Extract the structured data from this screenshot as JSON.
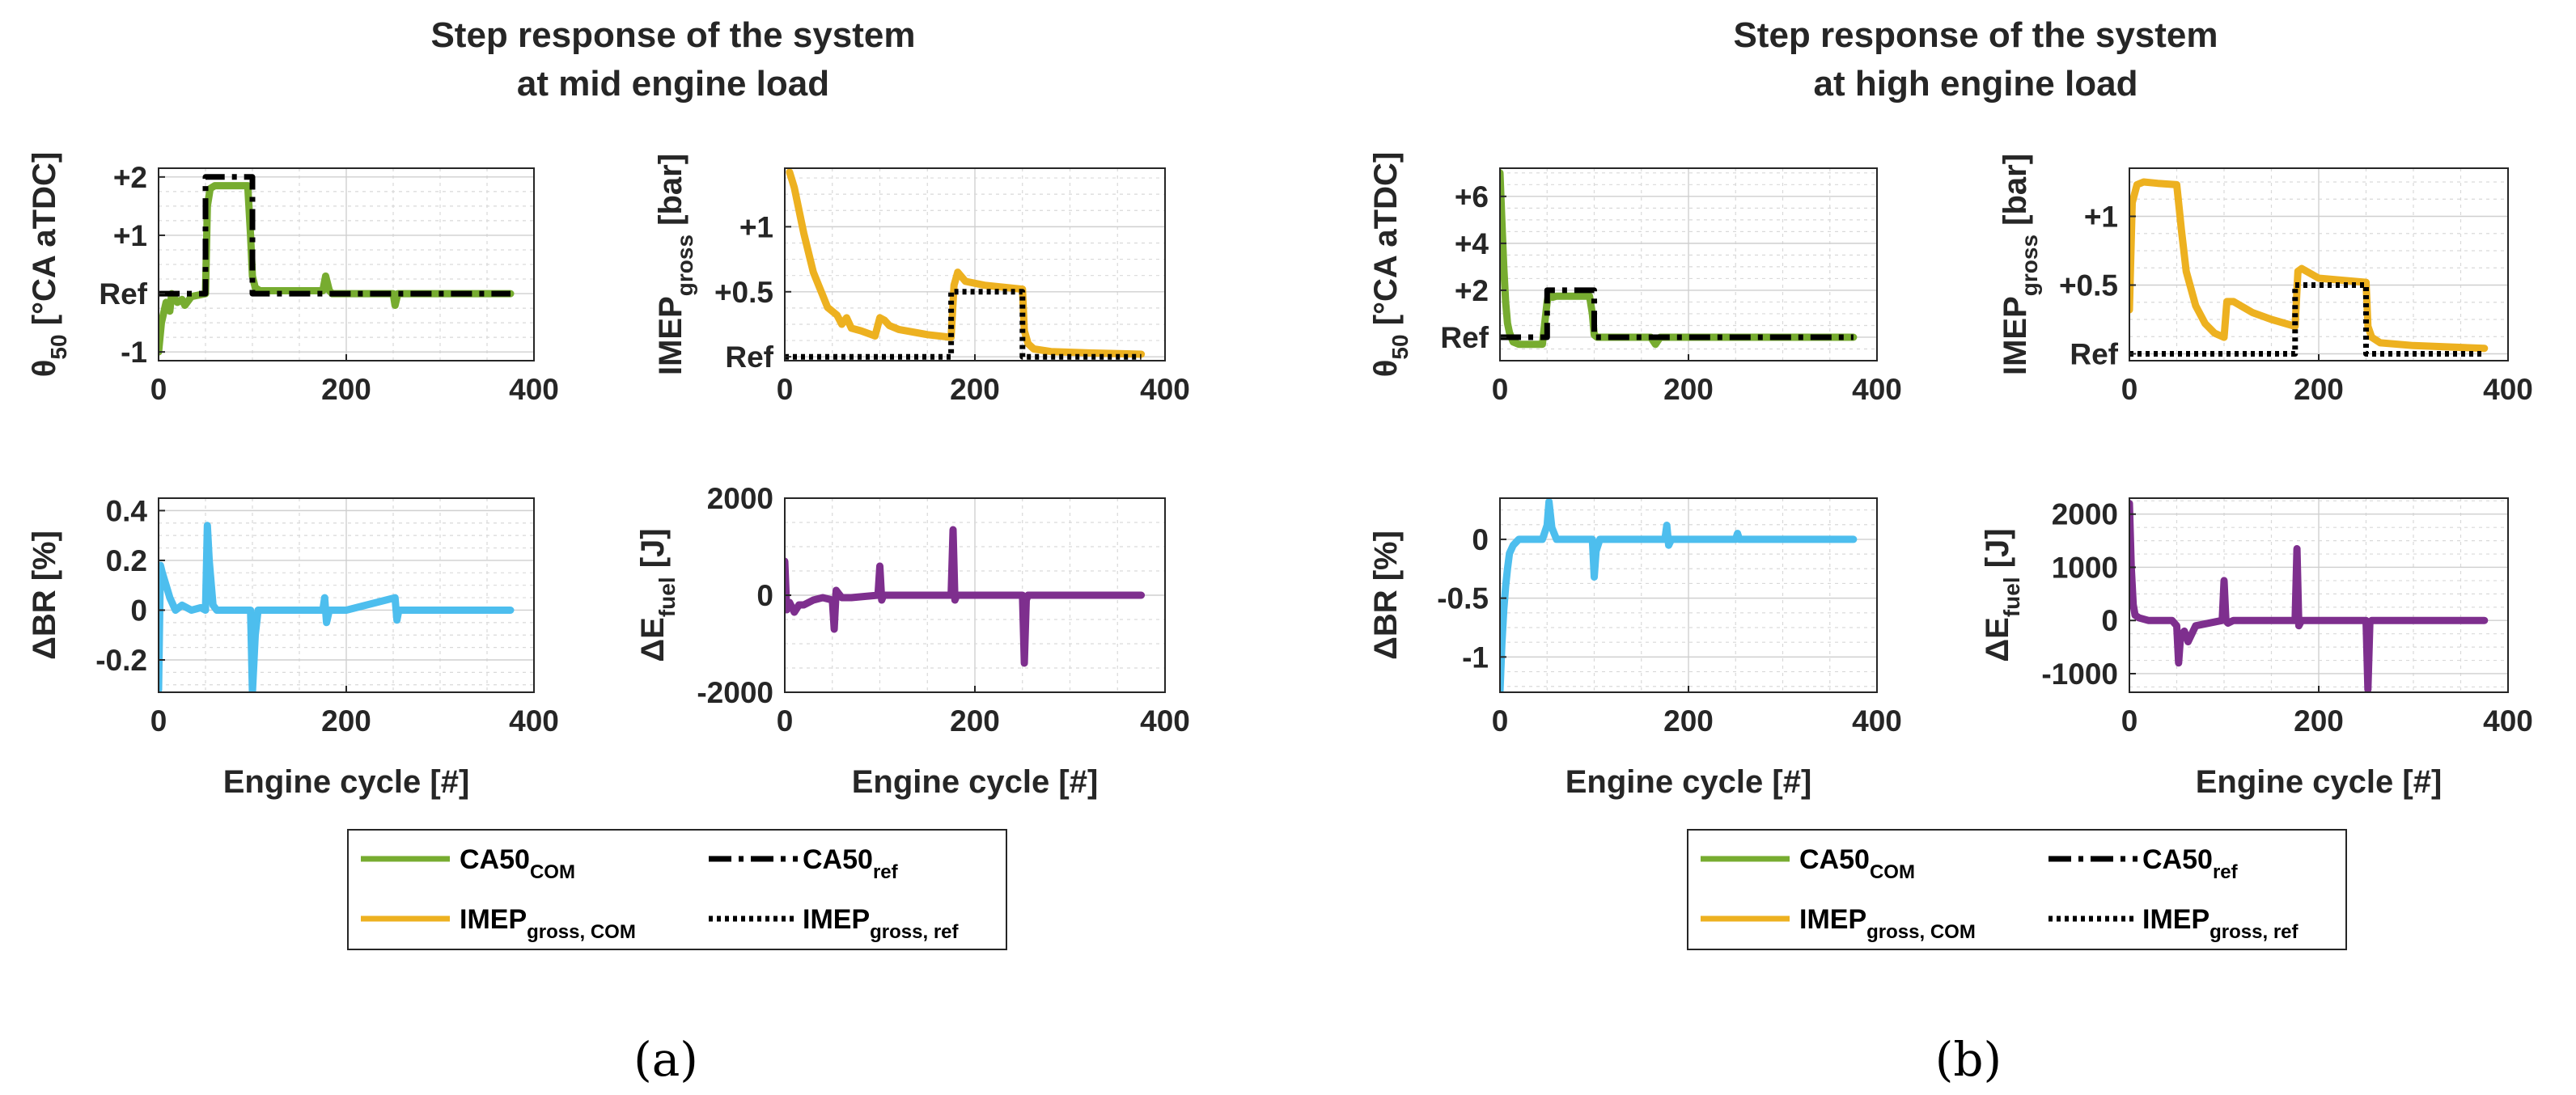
{
  "figure": {
    "panel_a_label": "(a)",
    "panel_b_label": "(b)"
  },
  "colors": {
    "ca50_com": "#77AC30",
    "ca50_ref": "#000000",
    "imep_com": "#EDB120",
    "imep_ref": "#000000",
    "delta_br": "#4DBEEE",
    "delta_e": "#7E2F8E"
  },
  "legend": {
    "ca50_com_main": "CA50",
    "ca50_com_sub": "COM",
    "ca50_ref_main": "CA50",
    "ca50_ref_sub": "ref",
    "imep_com_main": "IMEP",
    "imep_com_sub": "gross, COM",
    "imep_ref_main": "IMEP",
    "imep_ref_sub": "gross, ref"
  },
  "chart_data": [
    {
      "group": "a",
      "title_line1": "Step response of the system",
      "title_line2": "at mid engine load",
      "subplots": [
        {
          "id": "a_theta",
          "type": "line",
          "ylabel_main": "θ",
          "ylabel_sub": "50",
          "ylabel_rest": " [°CA aTDC]",
          "xlabel": "",
          "xlim": [
            0,
            400
          ],
          "ylim": [
            -1.15,
            2.15
          ],
          "xticks": [
            0,
            200,
            400
          ],
          "xtick_labels": [
            "0",
            "200",
            "400"
          ],
          "yticks": [
            -1,
            0,
            1,
            2
          ],
          "ytick_labels": [
            "-1",
            "Ref",
            "+1",
            "+2"
          ],
          "series": [
            {
              "name": "CA50_COM",
              "color_key": "ca50_com",
              "style": "solid",
              "x": [
                0,
                3,
                8,
                12,
                14,
                20,
                25,
                28,
                35,
                50,
                52,
                55,
                60,
                95,
                98,
                100,
                103,
                108,
                175,
                178,
                182,
                185,
                250,
                252,
                255,
                375
              ],
              "y": [
                -1.0,
                -0.5,
                -0.15,
                -0.3,
                0.0,
                -0.15,
                -0.1,
                -0.2,
                -0.05,
                0.0,
                1.5,
                1.8,
                1.85,
                1.85,
                1.0,
                0.3,
                0.1,
                0.05,
                0.05,
                0.3,
                0.05,
                0.0,
                0.0,
                -0.2,
                0.0,
                0.0
              ]
            },
            {
              "name": "CA50_ref",
              "color_key": "ca50_ref",
              "style": "dashdot",
              "x": [
                0,
                50,
                50,
                100,
                100,
                375
              ],
              "y": [
                0,
                0,
                2,
                2,
                0,
                0
              ]
            }
          ]
        },
        {
          "id": "a_imep",
          "type": "line",
          "ylabel_main": "IMEP",
          "ylabel_sub": "gross",
          "ylabel_rest": " [bar]",
          "xlabel": "",
          "xlim": [
            0,
            400
          ],
          "ylim": [
            -0.03,
            1.45
          ],
          "xticks": [
            0,
            200,
            400
          ],
          "xtick_labels": [
            "0",
            "200",
            "400"
          ],
          "yticks": [
            0,
            0.5,
            1.0
          ],
          "ytick_labels": [
            "Ref",
            "+0.5",
            "+1"
          ],
          "series": [
            {
              "name": "IMEP_COM",
              "color_key": "imep_com",
              "style": "solid",
              "x": [
                5,
                10,
                20,
                30,
                45,
                55,
                60,
                65,
                70,
                80,
                95,
                100,
                105,
                110,
                120,
                150,
                175,
                178,
                182,
                190,
                210,
                250,
                252,
                256,
                262,
                280,
                320,
                375
              ],
              "y": [
                1.42,
                1.3,
                0.95,
                0.65,
                0.38,
                0.32,
                0.25,
                0.3,
                0.22,
                0.2,
                0.16,
                0.3,
                0.28,
                0.24,
                0.21,
                0.17,
                0.15,
                0.55,
                0.65,
                0.58,
                0.55,
                0.52,
                0.2,
                0.1,
                0.06,
                0.04,
                0.03,
                0.02
              ]
            },
            {
              "name": "IMEP_ref",
              "color_key": "imep_ref",
              "style": "dotted",
              "x": [
                0,
                175,
                175,
                250,
                250,
                375
              ],
              "y": [
                0,
                0,
                0.5,
                0.5,
                0,
                0
              ]
            }
          ]
        },
        {
          "id": "a_br",
          "type": "line",
          "ylabel_main": "ΔBR [%]",
          "ylabel_sub": "",
          "ylabel_rest": "",
          "xlabel": "Engine cycle [#]",
          "xlim": [
            0,
            400
          ],
          "ylim": [
            -0.33,
            0.45
          ],
          "xticks": [
            0,
            200,
            400
          ],
          "xtick_labels": [
            "0",
            "200",
            "400"
          ],
          "yticks": [
            -0.2,
            0,
            0.2,
            0.4
          ],
          "ytick_labels": [
            "-0.2",
            "0",
            "0.2",
            "0.4"
          ],
          "series": [
            {
              "name": "ΔBR",
              "color_key": "delta_br",
              "style": "solid",
              "x": [
                0,
                2,
                4,
                8,
                12,
                18,
                25,
                35,
                45,
                50,
                52,
                54,
                58,
                62,
                70,
                90,
                98,
                100,
                103,
                106,
                110,
                130,
                175,
                177,
                179,
                182,
                200,
                252,
                254,
                256,
                258,
                375
              ],
              "y": [
                -0.32,
                0.18,
                0.15,
                0.1,
                0.05,
                0.0,
                0.02,
                0.0,
                0.01,
                0.0,
                0.34,
                0.2,
                0.02,
                0.0,
                0.0,
                0.0,
                0.0,
                -0.33,
                -0.1,
                0.0,
                0.0,
                0.0,
                0.0,
                0.05,
                -0.05,
                0.0,
                0.0,
                0.05,
                -0.04,
                0.0,
                0.0,
                0.0
              ]
            }
          ]
        },
        {
          "id": "a_e",
          "type": "line",
          "ylabel_main": "ΔE",
          "ylabel_sub": "fuel",
          "ylabel_rest": " [J]",
          "xlabel": "Engine cycle [#]",
          "xlim": [
            0,
            400
          ],
          "ylim": [
            -2000,
            2000
          ],
          "xticks": [
            0,
            200,
            400
          ],
          "xtick_labels": [
            "0",
            "200",
            "400"
          ],
          "yticks": [
            -2000,
            0,
            2000
          ],
          "ytick_labels": [
            "-2000",
            "0",
            "2000"
          ],
          "series": [
            {
              "name": "ΔE_fuel",
              "color_key": "delta_e",
              "style": "solid",
              "x": [
                0,
                2,
                5,
                10,
                15,
                20,
                30,
                40,
                50,
                52,
                54,
                56,
                60,
                70,
                98,
                100,
                102,
                104,
                110,
                150,
                175,
                177,
                179,
                181,
                200,
                250,
                252,
                254,
                256,
                300,
                375
              ],
              "y": [
                700,
                -300,
                -150,
                -350,
                -200,
                -200,
                -100,
                -50,
                -100,
                -700,
                100,
                50,
                -50,
                -50,
                0,
                600,
                -100,
                0,
                0,
                0,
                0,
                1350,
                -100,
                0,
                0,
                0,
                -1400,
                -100,
                0,
                0,
                0
              ]
            }
          ]
        }
      ]
    },
    {
      "group": "b",
      "title_line1": "Step response of the system",
      "title_line2": "at high engine load",
      "subplots": [
        {
          "id": "b_theta",
          "type": "line",
          "ylabel_main": "θ",
          "ylabel_sub": "50",
          "ylabel_rest": " [°CA aTDC]",
          "xlabel": "",
          "xlim": [
            0,
            400
          ],
          "ylim": [
            -1,
            7.2
          ],
          "xticks": [
            0,
            200,
            400
          ],
          "xtick_labels": [
            "0",
            "200",
            "400"
          ],
          "yticks": [
            0,
            2,
            4,
            6
          ],
          "ytick_labels": [
            "Ref",
            "+2",
            "+4",
            "+6"
          ],
          "series": [
            {
              "name": "CA50_COM",
              "color_key": "ca50_com",
              "style": "solid",
              "x": [
                0,
                2,
                4,
                6,
                8,
                10,
                14,
                20,
                30,
                45,
                50,
                52,
                56,
                60,
                95,
                98,
                100,
                103,
                110,
                160,
                165,
                170,
                175,
                250,
                375
              ],
              "y": [
                7.0,
                5.0,
                3.0,
                1.5,
                0.6,
                0.2,
                -0.2,
                -0.3,
                -0.3,
                -0.3,
                1.5,
                1.9,
                1.7,
                1.75,
                1.75,
                1.0,
                0.1,
                0.0,
                0.0,
                0.0,
                -0.3,
                0.0,
                0.0,
                0.0,
                0.0
              ]
            },
            {
              "name": "CA50_ref",
              "color_key": "ca50_ref",
              "style": "dashdot",
              "x": [
                0,
                50,
                50,
                100,
                100,
                375
              ],
              "y": [
                0,
                0,
                2,
                2,
                0,
                0
              ]
            }
          ]
        },
        {
          "id": "b_imep",
          "type": "line",
          "ylabel_main": "IMEP",
          "ylabel_sub": "gross",
          "ylabel_rest": " [bar]",
          "xlabel": "",
          "xlim": [
            0,
            400
          ],
          "ylim": [
            -0.05,
            1.35
          ],
          "xticks": [
            0,
            200,
            400
          ],
          "xtick_labels": [
            "0",
            "200",
            "400"
          ],
          "yticks": [
            0,
            0.5,
            1.0
          ],
          "ytick_labels": [
            "Ref",
            "+0.5",
            "+1"
          ],
          "series": [
            {
              "name": "IMEP_COM",
              "color_key": "imep_com",
              "style": "solid",
              "x": [
                0,
                3,
                8,
                15,
                30,
                50,
                52,
                55,
                60,
                70,
                80,
                90,
                100,
                103,
                110,
                130,
                150,
                175,
                178,
                182,
                200,
                250,
                252,
                256,
                265,
                300,
                375
              ],
              "y": [
                0.32,
                1.1,
                1.23,
                1.25,
                1.24,
                1.23,
                1.1,
                0.9,
                0.6,
                0.35,
                0.22,
                0.15,
                0.12,
                0.38,
                0.38,
                0.3,
                0.25,
                0.2,
                0.6,
                0.62,
                0.55,
                0.52,
                0.2,
                0.12,
                0.08,
                0.06,
                0.04
              ]
            },
            {
              "name": "IMEP_ref",
              "color_key": "imep_ref",
              "style": "dotted",
              "x": [
                0,
                175,
                175,
                250,
                250,
                375
              ],
              "y": [
                0,
                0,
                0.5,
                0.5,
                0,
                0
              ]
            }
          ]
        },
        {
          "id": "b_br",
          "type": "line",
          "ylabel_main": "ΔBR [%]",
          "ylabel_sub": "",
          "ylabel_rest": "",
          "xlabel": "Engine cycle [#]",
          "xlim": [
            0,
            400
          ],
          "ylim": [
            -1.3,
            0.35
          ],
          "xticks": [
            0,
            200,
            400
          ],
          "xtick_labels": [
            "0",
            "200",
            "400"
          ],
          "yticks": [
            -1,
            -0.5,
            0
          ],
          "ytick_labels": [
            "-1",
            "-0.5",
            "0"
          ],
          "series": [
            {
              "name": "ΔBR",
              "color_key": "delta_br",
              "style": "solid",
              "x": [
                0,
                2,
                4,
                6,
                8,
                10,
                14,
                20,
                30,
                45,
                50,
                52,
                55,
                60,
                70,
                98,
                100,
                102,
                106,
                110,
                175,
                177,
                179,
                182,
                250,
                252,
                254,
                375
              ],
              "y": [
                -1.3,
                -0.9,
                -0.6,
                -0.4,
                -0.25,
                -0.12,
                -0.05,
                0.0,
                0.0,
                0.0,
                0.12,
                0.32,
                0.1,
                0.0,
                0.0,
                0.0,
                -0.32,
                -0.1,
                0.0,
                0.0,
                0.0,
                0.12,
                -0.05,
                0.0,
                0.0,
                0.05,
                0.0,
                0.0
              ]
            }
          ]
        },
        {
          "id": "b_e",
          "type": "line",
          "ylabel_main": "ΔE",
          "ylabel_sub": "fuel",
          "ylabel_rest": " [J]",
          "xlabel": "Engine cycle [#]",
          "xlim": [
            0,
            400
          ],
          "ylim": [
            -1350,
            2300
          ],
          "xticks": [
            0,
            200,
            400
          ],
          "xtick_labels": [
            "0",
            "200",
            "400"
          ],
          "yticks": [
            -1000,
            0,
            1000,
            2000
          ],
          "ytick_labels": [
            "-1000",
            "0",
            "1000",
            "2000"
          ],
          "series": [
            {
              "name": "ΔE_fuel",
              "color_key": "delta_e",
              "style": "solid",
              "x": [
                0,
                2,
                4,
                6,
                10,
                20,
                30,
                45,
                50,
                52,
                54,
                58,
                62,
                70,
                98,
                100,
                102,
                104,
                110,
                175,
                177,
                179,
                182,
                250,
                252,
                254,
                256,
                375
              ],
              "y": [
                2200,
                1000,
                300,
                100,
                50,
                0,
                0,
                0,
                -100,
                -800,
                -300,
                -200,
                -400,
                -100,
                0,
                750,
                0,
                -50,
                0,
                0,
                1350,
                -100,
                0,
                0,
                -1300,
                -50,
                0,
                0
              ]
            }
          ]
        }
      ]
    }
  ]
}
